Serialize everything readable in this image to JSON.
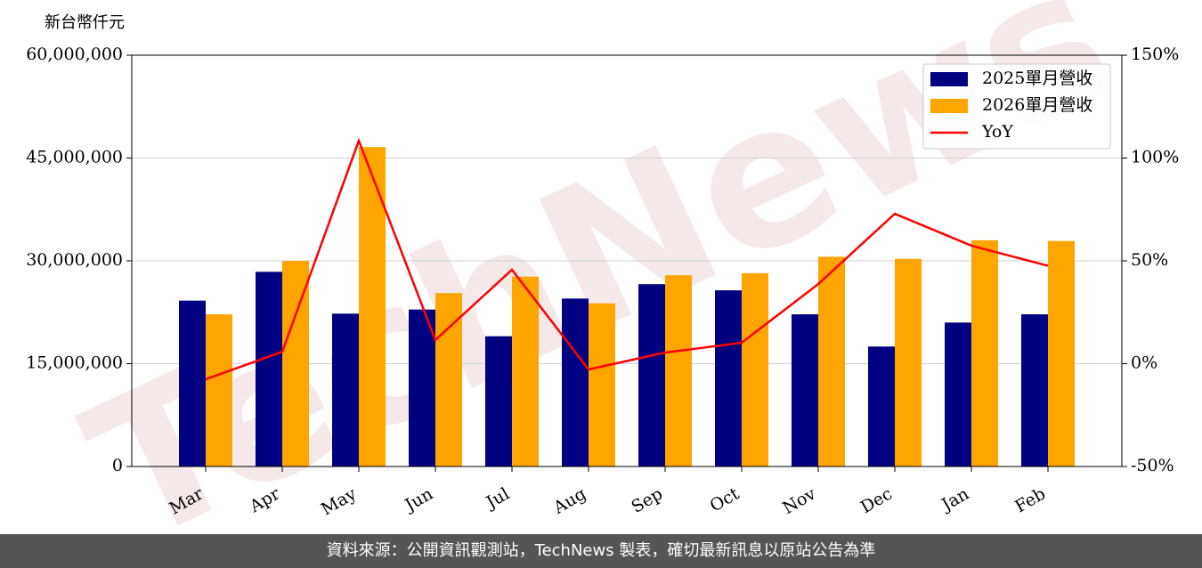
{
  "chart_data": {
    "type": "bar",
    "ylabel": "新台幣仟元",
    "watermark": "TechNews",
    "categories": [
      "Mar",
      "Apr",
      "May",
      "Jun",
      "Jul",
      "Aug",
      "Sep",
      "Oct",
      "Nov",
      "Dec",
      "Jan",
      "Feb"
    ],
    "series": [
      {
        "name": "2025單月營收",
        "color": "#000080",
        "type": "bar",
        "values": [
          24200000,
          28400000,
          22300000,
          22900000,
          19000000,
          24500000,
          26600000,
          25700000,
          22200000,
          17500000,
          21000000,
          22200000
        ]
      },
      {
        "name": "2026單月營收",
        "color": "#ffa500",
        "type": "bar",
        "values": [
          22200000,
          30000000,
          46600000,
          25300000,
          27700000,
          23800000,
          27900000,
          28200000,
          30600000,
          30300000,
          33000000,
          32900000
        ]
      },
      {
        "name": "YoY",
        "color": "#ff0000",
        "type": "line",
        "axis": "y2",
        "values": [
          -7.6,
          5.8,
          108.4,
          11.5,
          45.7,
          -2.8,
          5.4,
          10.2,
          38.7,
          72.9,
          57.4,
          47.6
        ]
      }
    ],
    "ylim": [
      0,
      60000000
    ],
    "yticks": [
      0,
      {
        "value": 15000000,
        "label": "15,000,000"
      },
      {
        "value": 30000000,
        "label": "30,000,000"
      },
      {
        "value": 45000000,
        "label": "45,000,000"
      },
      {
        "value": 60000000,
        "label": "60,000,000"
      }
    ],
    "y2lim": [
      -50,
      150
    ],
    "y2ticks": [
      {
        "value": -50,
        "label": "-50%"
      },
      {
        "value": 0,
        "label": "0%"
      },
      {
        "value": 50,
        "label": "50%"
      },
      {
        "value": 100,
        "label": "100%"
      },
      {
        "value": 150,
        "label": "150%"
      }
    ],
    "grid": true,
    "legend": "upper right"
  },
  "footer": "資料來源：公開資訊觀測站，TechNews 製表，確切最新訊息以原站公告為準"
}
